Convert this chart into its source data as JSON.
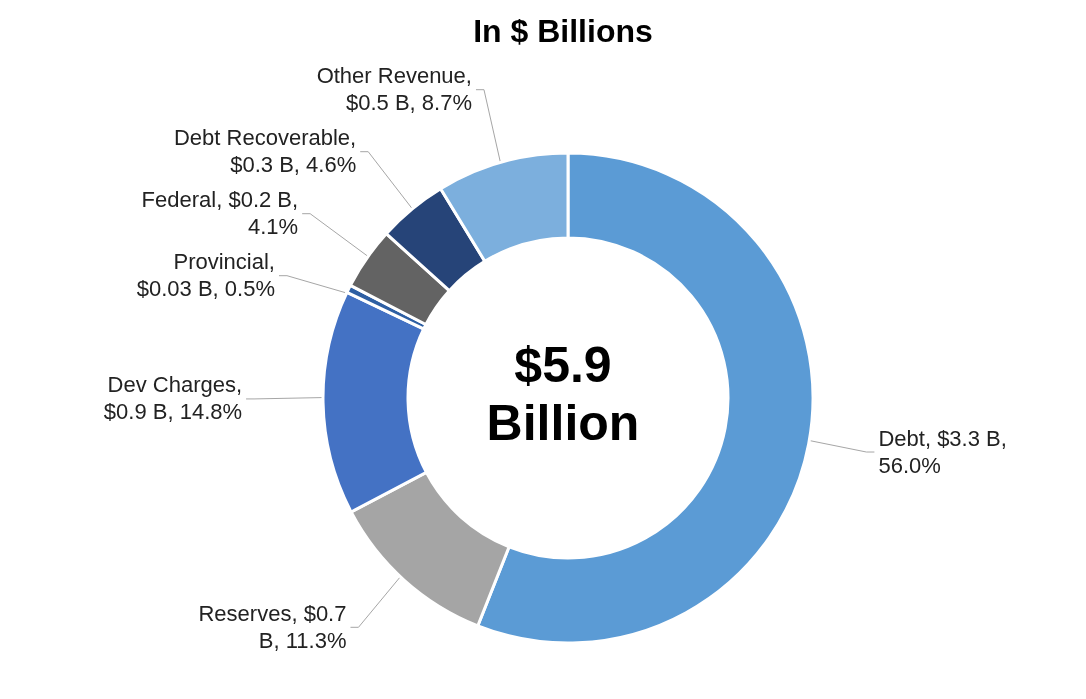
{
  "chart_data": {
    "type": "donut",
    "title": "In $ Billions",
    "categories": [
      "Debt",
      "Reserves",
      "Dev Charges",
      "Provincial",
      "Federal",
      "Debt Recoverable",
      "Other Revenue"
    ],
    "values": [
      56.0,
      11.3,
      14.8,
      0.5,
      4.1,
      4.6,
      8.7
    ],
    "value_labels": [
      ", $3.3 B, 56.0%",
      ", $0.7 B, 11.3%",
      ", $0.9 B, 14.8%",
      ", $0.03 B, 0.5%",
      ", $0.2 B, 4.1%",
      ", $0.3 B, 4.6%",
      ", $0.5 B, 8.7%"
    ],
    "colors": [
      "#5b9bd5",
      "#a5a5a5",
      "#4472c4",
      "#2e5fa3",
      "#636363",
      "#264478",
      "#7cafdd"
    ],
    "annotations": [
      "$5.9 Billion"
    ]
  }
}
